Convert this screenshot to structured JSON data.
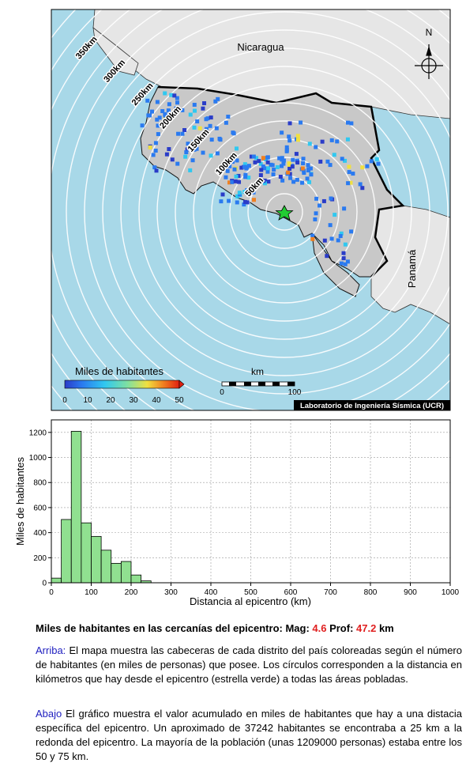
{
  "map": {
    "countries": [
      "Nicaragua",
      "Panamá"
    ],
    "north_label": "N",
    "rings": [
      "50km",
      "100km",
      "150km",
      "200km",
      "250km",
      "300km",
      "350km"
    ],
    "legend": {
      "title": "Miles de habitantes",
      "ticks": [
        "0",
        "10",
        "20",
        "30",
        "40",
        "50"
      ],
      "colors": [
        "#2a3cc8",
        "#2a7af0",
        "#30c8f0",
        "#80e0a0",
        "#f0e040",
        "#f08020",
        "#e02010"
      ]
    },
    "scale_bar": {
      "unit": "km",
      "ticks": [
        "0",
        "100"
      ]
    },
    "credit": "Laboratorio de Ingeniería Sísmica (UCR)",
    "colors": {
      "ocean": "#a8d8e8",
      "land": "#c8c8c8",
      "land_outside": "#e6e6e6",
      "epicenter": "#22cc33"
    }
  },
  "chart_data": {
    "type": "bar",
    "xlabel": "Distancia al epicentro (km)",
    "ylabel": "Miles de habitantes",
    "xlim": [
      0,
      1000
    ],
    "ylim": [
      0,
      1300
    ],
    "xticks": [
      0,
      100,
      200,
      300,
      400,
      500,
      600,
      700,
      800,
      900,
      1000
    ],
    "yticks": [
      0,
      200,
      400,
      600,
      800,
      1000,
      1200
    ],
    "bin_width": 25,
    "bins_start": [
      0,
      25,
      50,
      75,
      100,
      125,
      150,
      175,
      200,
      225
    ],
    "values": [
      37,
      505,
      1209,
      478,
      370,
      260,
      155,
      170,
      62,
      15
    ],
    "bar_color": "#90e090"
  },
  "caption": {
    "title_prefix": "Miles de habitantes en las cercanías del epicentro: Mag: ",
    "mag": "4.6",
    "prof_label": " Prof: ",
    "prof": "47.2",
    "prof_unit": " km",
    "top_label": "Arriba:",
    "top_text": " El mapa muestra las cabeceras de cada distrito del país coloreadas según el número de habitantes (en miles de personas) que posee. Los círculos corresponden a la distancia en kilómetros que hay desde el epicentro (estrella verde) a todas las áreas pobladas.",
    "bottom_label": "Abajo",
    "bottom_text": " El gráfico muestra el valor acumulado en miles de habitantes que hay a una distacia específica del epicentro. Un aproximado de 37242 habitantes se encontraba a 25 km a la redonda del epicentro. La mayoría de la población (unas 1209000 personas) estaba entre los 50 y 75 km."
  }
}
